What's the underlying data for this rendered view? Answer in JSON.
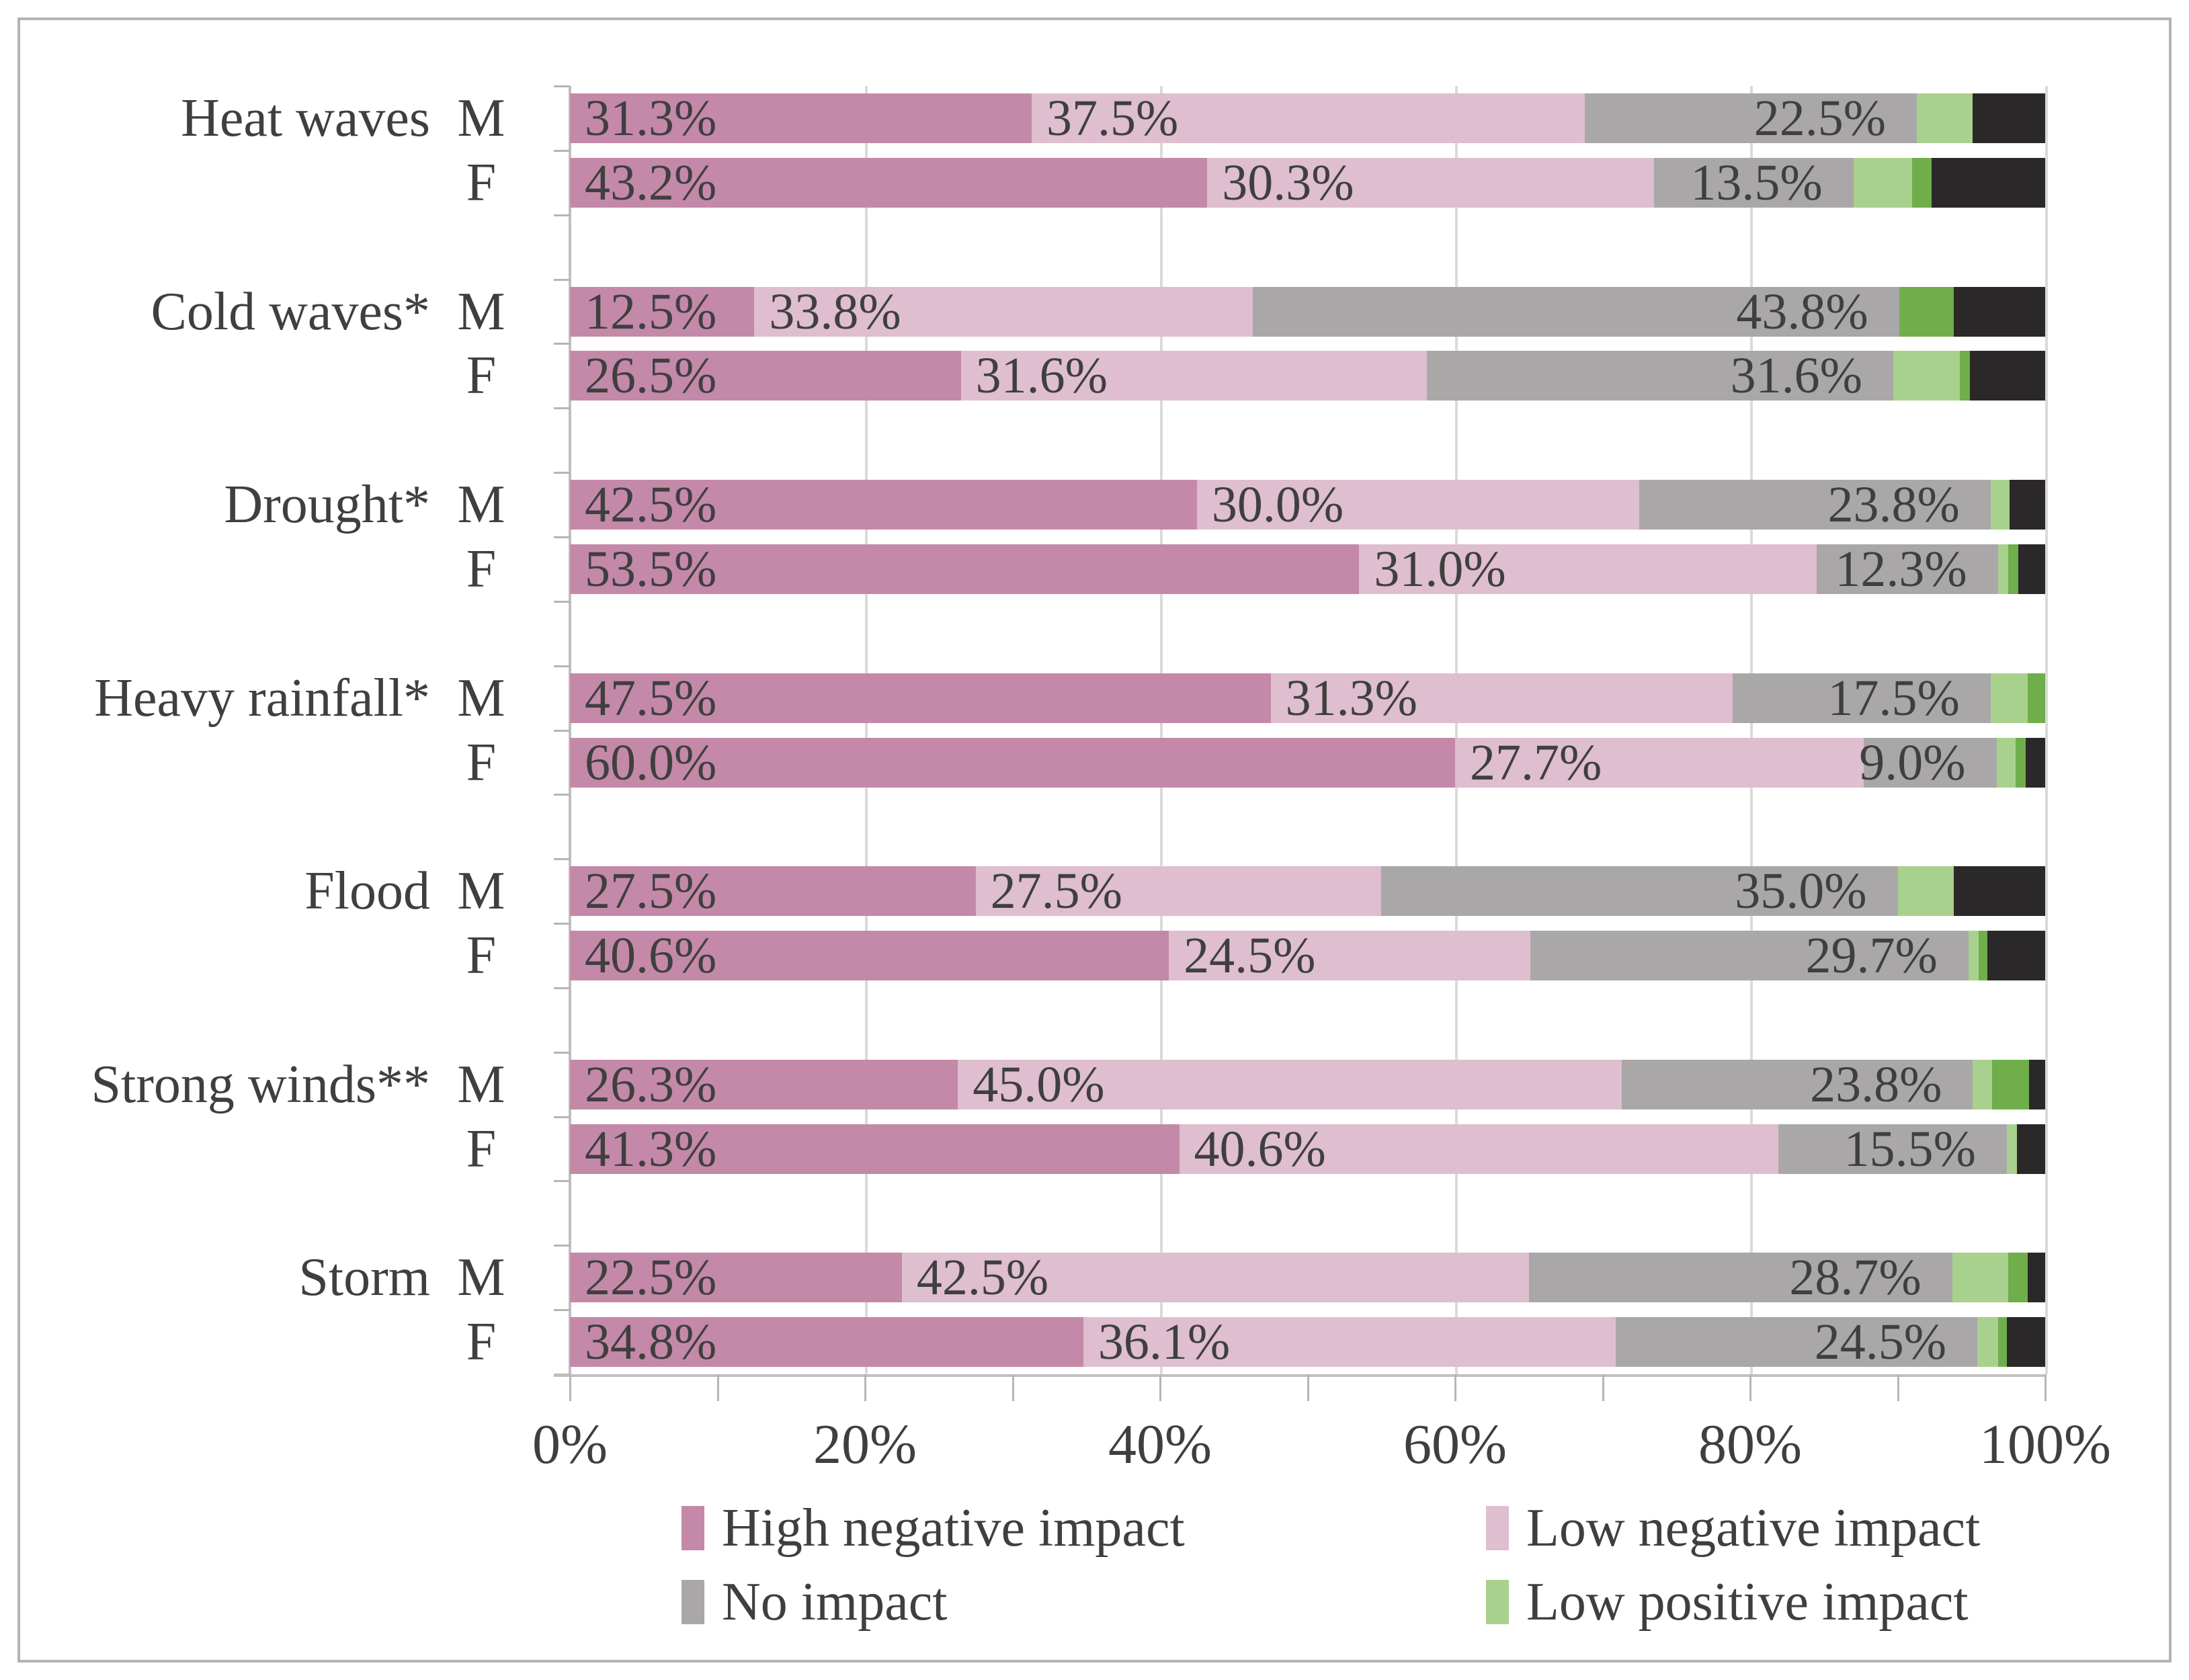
{
  "figure": {
    "background": "#ffffff",
    "border_color": "#b5b2b5"
  },
  "x_axis": {
    "tick_labels": [
      "0%",
      "20%",
      "40%",
      "60%",
      "80%",
      "100%"
    ],
    "range": [
      0,
      100
    ],
    "minor_tick_step": 10,
    "gridline_step": 20,
    "gridline_color": "#dadada",
    "axis_color": "#c2bfc0"
  },
  "legend": {
    "position": "bottom-two-columns",
    "items": [
      {
        "label": "High negative impact",
        "color": "#c489a8"
      },
      {
        "label": "Low negative impact",
        "color": "#debecf"
      },
      {
        "label": "No impact",
        "color": "#aaa7a8"
      },
      {
        "label": "Low positive impact",
        "color": "#a9d18e"
      }
    ]
  },
  "chart_data": {
    "type": "bar",
    "stacked": true,
    "orientation": "horizontal",
    "value_unit": "%",
    "xlim": [
      0,
      100
    ],
    "grid": "vertical-major-20",
    "series": [
      {
        "name": "High negative impact",
        "color": "#c489a8",
        "in_legend": true,
        "label_placement": "inside-left"
      },
      {
        "name": "Low negative impact",
        "color": "#debecf",
        "in_legend": true,
        "label_placement": "inside-left"
      },
      {
        "name": "No impact",
        "color": "#aaa7a8",
        "in_legend": true,
        "label_placement": "inside-right"
      },
      {
        "name": "Low positive impact",
        "color": "#a9d18e",
        "in_legend": true,
        "label_placement": "none"
      },
      {
        "name": "",
        "color": "#6fae4b",
        "in_legend": false,
        "label_placement": "none"
      },
      {
        "name": "",
        "color": "#2b2829",
        "in_legend": false,
        "label_placement": "none"
      }
    ],
    "categories": [
      "Heat waves",
      "Cold waves*",
      "Drought*",
      "Heavy rainfall*",
      "Flood",
      "Strong winds**",
      "Storm"
    ],
    "rows": [
      {
        "category": "Heat waves",
        "sex": "M",
        "values": [
          31.3,
          37.5,
          22.5,
          3.8,
          0,
          4.9
        ],
        "labels": [
          "31.3%",
          "37.5%",
          "22.5%"
        ]
      },
      {
        "category": "Heat waves",
        "sex": "F",
        "values": [
          43.2,
          30.3,
          13.5,
          4.0,
          1.3,
          7.7
        ],
        "labels": [
          "43.2%",
          "30.3%",
          "13.5%"
        ]
      },
      {
        "category": "Cold waves*",
        "sex": "M",
        "values": [
          12.5,
          33.8,
          43.8,
          0,
          3.7,
          6.2
        ],
        "labels": [
          "12.5%",
          "33.8%",
          "43.8%"
        ]
      },
      {
        "category": "Cold waves*",
        "sex": "F",
        "values": [
          26.5,
          31.6,
          31.6,
          4.5,
          0.7,
          5.1
        ],
        "labels": [
          "26.5%",
          "31.6%",
          "31.6%"
        ]
      },
      {
        "category": "Drought*",
        "sex": "M",
        "values": [
          42.5,
          30.0,
          23.8,
          1.3,
          0,
          2.4
        ],
        "labels": [
          "42.5%",
          "30.0%",
          "23.8%"
        ]
      },
      {
        "category": "Drought*",
        "sex": "F",
        "values": [
          53.5,
          31.0,
          12.3,
          0.7,
          0.7,
          1.8
        ],
        "labels": [
          "53.5%",
          "31.0%",
          "12.3%"
        ]
      },
      {
        "category": "Heavy rainfall*",
        "sex": "M",
        "values": [
          47.5,
          31.3,
          17.5,
          2.5,
          1.2,
          0
        ],
        "labels": [
          "47.5%",
          "31.3%",
          "17.5%"
        ]
      },
      {
        "category": "Heavy rainfall*",
        "sex": "F",
        "values": [
          60.0,
          27.7,
          9.0,
          1.3,
          0.7,
          1.3
        ],
        "labels": [
          "60.0%",
          "27.7%",
          "9.0%"
        ]
      },
      {
        "category": "Flood",
        "sex": "M",
        "values": [
          27.5,
          27.5,
          35.0,
          3.8,
          0,
          6.2
        ],
        "labels": [
          "27.5%",
          "27.5%",
          "35.0%"
        ]
      },
      {
        "category": "Flood",
        "sex": "F",
        "values": [
          40.6,
          24.5,
          29.7,
          0.7,
          0.6,
          3.9
        ],
        "labels": [
          "40.6%",
          "24.5%",
          "29.7%"
        ]
      },
      {
        "category": "Strong winds**",
        "sex": "M",
        "values": [
          26.3,
          45.0,
          23.8,
          1.3,
          2.5,
          1.1
        ],
        "labels": [
          "26.3%",
          "45.0%",
          "23.8%"
        ]
      },
      {
        "category": "Strong winds**",
        "sex": "F",
        "values": [
          41.3,
          40.6,
          15.5,
          0.7,
          0,
          1.9
        ],
        "labels": [
          "41.3%",
          "40.6%",
          "15.5%"
        ]
      },
      {
        "category": "Storm",
        "sex": "M",
        "values": [
          22.5,
          42.5,
          28.7,
          3.8,
          1.3,
          1.2
        ],
        "labels": [
          "22.5%",
          "42.5%",
          "28.7%"
        ]
      },
      {
        "category": "Storm",
        "sex": "F",
        "values": [
          34.8,
          36.1,
          24.5,
          1.4,
          0.6,
          2.6
        ],
        "labels": [
          "34.8%",
          "36.1%",
          "24.5%"
        ]
      }
    ]
  }
}
